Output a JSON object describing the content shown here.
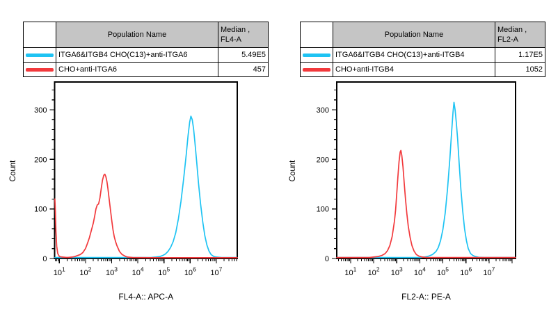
{
  "colors": {
    "cyan": "#1ec3f3",
    "red": "#f2393c",
    "table_header_bg": "#c5c5c5",
    "axis": "#000000"
  },
  "panels": [
    {
      "table": {
        "header": {
          "population": "Population Name",
          "median_line1": "Median ,",
          "median_line2": "FL4-A"
        },
        "rows": [
          {
            "color": "cyan",
            "name": "ITGA6&ITGB4 CHO(C13)+anti-ITGA6",
            "median": "5.49E5"
          },
          {
            "color": "red",
            "name": "CHO+anti-ITGA6",
            "median": "457"
          }
        ]
      }
    },
    {
      "table": {
        "header": {
          "population": "Population Name",
          "median_line1": "Median ,",
          "median_line2": "FL2-A"
        },
        "rows": [
          {
            "color": "cyan",
            "name": "ITGA6&ITGB4 CHO(C13)+anti-ITGB4",
            "median": "1.17E5"
          },
          {
            "color": "red",
            "name": "CHO+anti-ITGB4",
            "median": "1052"
          }
        ]
      }
    }
  ],
  "chart_data": [
    {
      "type": "line",
      "title": "FL4-A histogram overlay",
      "xlabel": "FL4-A:: APC-A",
      "ylabel": "Count",
      "x_scale": "log10",
      "x_range_log": [
        0.82,
        7.8
      ],
      "x_major_ticks_exp": [
        1,
        2,
        3,
        4,
        5,
        6,
        7
      ],
      "y_range": [
        0,
        356
      ],
      "y_major_ticks": [
        0,
        100,
        200,
        300
      ],
      "y_minor_step": 20,
      "grid": false,
      "legend_position": "table-above",
      "series": [
        {
          "name": "ITGA6&ITGB4 CHO(C13)+anti-ITGA6",
          "color": "cyan",
          "median": "5.49E5",
          "points_logx_count": [
            [
              0.83,
              2
            ],
            [
              4.5,
              2
            ],
            [
              4.7,
              3
            ],
            [
              4.85,
              4
            ],
            [
              4.95,
              6
            ],
            [
              5.05,
              9
            ],
            [
              5.15,
              14
            ],
            [
              5.25,
              22
            ],
            [
              5.35,
              34
            ],
            [
              5.45,
              52
            ],
            [
              5.55,
              80
            ],
            [
              5.65,
              115
            ],
            [
              5.75,
              160
            ],
            [
              5.85,
              210
            ],
            [
              5.92,
              248
            ],
            [
              5.98,
              275
            ],
            [
              6.03,
              287
            ],
            [
              6.08,
              280
            ],
            [
              6.13,
              262
            ],
            [
              6.18,
              235
            ],
            [
              6.25,
              195
            ],
            [
              6.32,
              152
            ],
            [
              6.4,
              110
            ],
            [
              6.48,
              74
            ],
            [
              6.56,
              46
            ],
            [
              6.64,
              27
            ],
            [
              6.72,
              15
            ],
            [
              6.8,
              8
            ],
            [
              6.9,
              4
            ],
            [
              7.0,
              3
            ],
            [
              7.2,
              2
            ],
            [
              7.8,
              2
            ]
          ]
        },
        {
          "name": "CHO+anti-ITGA6",
          "color": "red",
          "median": "457",
          "points_logx_count": [
            [
              0.83,
              120
            ],
            [
              0.85,
              95
            ],
            [
              0.87,
              55
            ],
            [
              0.9,
              25
            ],
            [
              0.94,
              10
            ],
            [
              1.0,
              4
            ],
            [
              1.1,
              3
            ],
            [
              1.3,
              2
            ],
            [
              1.5,
              3
            ],
            [
              1.6,
              4
            ],
            [
              1.7,
              6
            ],
            [
              1.8,
              8
            ],
            [
              1.9,
              12
            ],
            [
              2.0,
              20
            ],
            [
              2.05,
              27
            ],
            [
              2.1,
              34
            ],
            [
              2.15,
              42
            ],
            [
              2.2,
              52
            ],
            [
              2.25,
              62
            ],
            [
              2.3,
              72
            ],
            [
              2.35,
              85
            ],
            [
              2.4,
              100
            ],
            [
              2.45,
              108
            ],
            [
              2.5,
              110
            ],
            [
              2.55,
              122
            ],
            [
              2.6,
              140
            ],
            [
              2.65,
              158
            ],
            [
              2.7,
              168
            ],
            [
              2.74,
              170
            ],
            [
              2.78,
              165
            ],
            [
              2.82,
              155
            ],
            [
              2.86,
              140
            ],
            [
              2.9,
              122
            ],
            [
              2.95,
              100
            ],
            [
              3.0,
              78
            ],
            [
              3.05,
              58
            ],
            [
              3.1,
              44
            ],
            [
              3.15,
              34
            ],
            [
              3.2,
              26
            ],
            [
              3.3,
              14
            ],
            [
              3.4,
              8
            ],
            [
              3.5,
              5
            ],
            [
              3.6,
              3
            ],
            [
              3.8,
              2
            ],
            [
              4.5,
              1.5
            ],
            [
              7.8,
              1.5
            ]
          ]
        }
      ]
    },
    {
      "type": "line",
      "title": "FL2-A histogram overlay",
      "xlabel": "FL2-A:: PE-A",
      "ylabel": "Count",
      "x_scale": "log10",
      "x_range_log": [
        0.4,
        8.15
      ],
      "x_major_ticks_exp": [
        1,
        2,
        3,
        4,
        5,
        6,
        7
      ],
      "y_range": [
        0,
        356
      ],
      "y_major_ticks": [
        0,
        100,
        200,
        300
      ],
      "y_minor_step": 20,
      "grid": false,
      "legend_position": "table-above",
      "series": [
        {
          "name": "ITGA6&ITGB4 CHO(C13)+anti-ITGB4",
          "color": "cyan",
          "median": "1.17E5",
          "points_logx_count": [
            [
              0.4,
              2
            ],
            [
              4.0,
              2
            ],
            [
              4.2,
              3
            ],
            [
              4.4,
              5
            ],
            [
              4.55,
              8
            ],
            [
              4.7,
              14
            ],
            [
              4.8,
              22
            ],
            [
              4.9,
              36
            ],
            [
              5.0,
              58
            ],
            [
              5.1,
              92
            ],
            [
              5.2,
              140
            ],
            [
              5.3,
              200
            ],
            [
              5.38,
              255
            ],
            [
              5.44,
              295
            ],
            [
              5.48,
              315
            ],
            [
              5.53,
              300
            ],
            [
              5.58,
              275
            ],
            [
              5.64,
              240
            ],
            [
              5.7,
              195
            ],
            [
              5.78,
              140
            ],
            [
              5.86,
              95
            ],
            [
              5.94,
              60
            ],
            [
              6.02,
              36
            ],
            [
              6.1,
              20
            ],
            [
              6.2,
              10
            ],
            [
              6.3,
              6
            ],
            [
              6.4,
              4
            ],
            [
              6.55,
              2.5
            ],
            [
              6.8,
              2
            ],
            [
              8.15,
              2
            ]
          ]
        },
        {
          "name": "CHO+anti-ITGB4",
          "color": "red",
          "median": "1052",
          "points_logx_count": [
            [
              0.4,
              2
            ],
            [
              1.8,
              2
            ],
            [
              2.0,
              3
            ],
            [
              2.2,
              4
            ],
            [
              2.35,
              6
            ],
            [
              2.5,
              10
            ],
            [
              2.6,
              16
            ],
            [
              2.7,
              26
            ],
            [
              2.8,
              44
            ],
            [
              2.9,
              75
            ],
            [
              2.95,
              98
            ],
            [
              3.0,
              130
            ],
            [
              3.05,
              165
            ],
            [
              3.1,
              195
            ],
            [
              3.15,
              215
            ],
            [
              3.18,
              218
            ],
            [
              3.22,
              208
            ],
            [
              3.27,
              185
            ],
            [
              3.32,
              155
            ],
            [
              3.38,
              120
            ],
            [
              3.44,
              90
            ],
            [
              3.5,
              65
            ],
            [
              3.58,
              42
            ],
            [
              3.66,
              26
            ],
            [
              3.75,
              15
            ],
            [
              3.85,
              8
            ],
            [
              3.95,
              5
            ],
            [
              4.1,
              3
            ],
            [
              4.3,
              2
            ],
            [
              8.15,
              2
            ]
          ]
        }
      ]
    }
  ]
}
